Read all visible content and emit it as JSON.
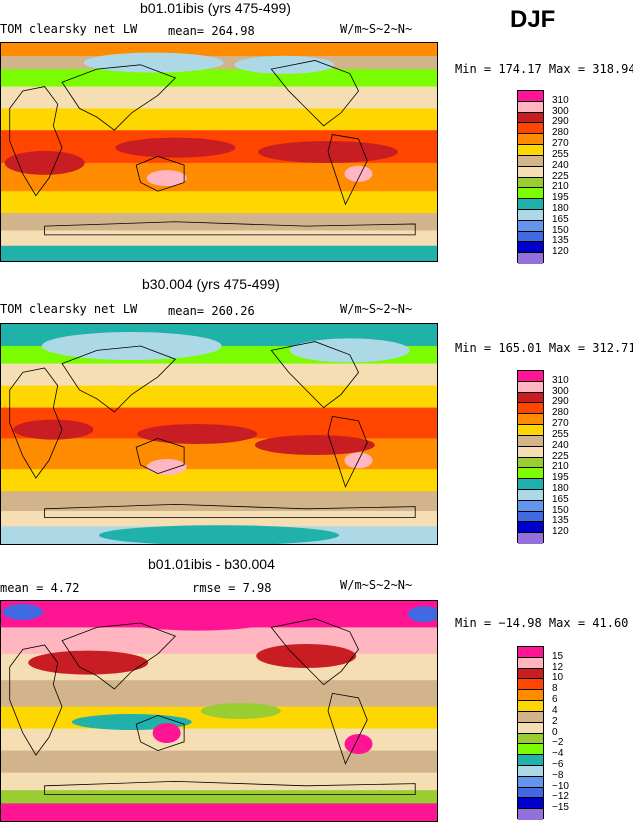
{
  "season": "DJF",
  "units": "W/m~S~2~N~",
  "panels": [
    {
      "title": "b01.01ibis (yrs 475-499)",
      "left_label": "TOM clearsky net LW",
      "stat_text": "mean= 264.98",
      "minmax": "Min = 174.17 Max = 318.94"
    },
    {
      "title": "b30.004 (yrs 475-499)",
      "left_label": "TOM clearsky net LW",
      "stat_text": "mean= 260.26",
      "minmax": "Min = 165.01 Max = 312.71"
    },
    {
      "title": "b01.01ibis - b30.004",
      "left_label": "mean =   4.72",
      "stat_text": "rmse =   7.98",
      "minmax": "Min = −14.98 Max =  41.60"
    }
  ],
  "colors": {
    "c1": "#ff1493",
    "c2": "#ffb6c1",
    "c3": "#c81e23",
    "c4": "#ff4500",
    "c5": "#ff8c00",
    "c6": "#ffd700",
    "c7": "#d2b48c",
    "c8": "#f5deb3",
    "c9": "#9acd32",
    "c10": "#7cfc00",
    "c11": "#20b2aa",
    "c12": "#add8e6",
    "c13": "#6495ed",
    "c14": "#4169e1",
    "c15": "#0000cd",
    "c16": "#9370db"
  },
  "chart_data": [
    {
      "type": "heatmap",
      "title": "b01.01ibis (yrs 475-499)",
      "variable": "TOM clearsky net LW",
      "units": "W/m~S~2~N~",
      "mean": 264.98,
      "min": 174.17,
      "max": 318.94,
      "levels": [
        "310",
        "300",
        "290",
        "280",
        "270",
        "255",
        "240",
        "225",
        "210",
        "195",
        "180",
        "165",
        "150",
        "135",
        "120"
      ],
      "level_values": [
        310,
        300,
        290,
        280,
        270,
        255,
        240,
        225,
        210,
        195,
        180,
        165,
        150,
        135,
        120
      ]
    },
    {
      "type": "heatmap",
      "title": "b30.004 (yrs 475-499)",
      "variable": "TOM clearsky net LW",
      "units": "W/m~S~2~N~",
      "mean": 260.26,
      "min": 165.01,
      "max": 312.71,
      "levels": [
        "310",
        "300",
        "290",
        "280",
        "270",
        "255",
        "240",
        "225",
        "210",
        "195",
        "180",
        "165",
        "150",
        "135",
        "120"
      ],
      "level_values": [
        310,
        300,
        290,
        280,
        270,
        255,
        240,
        225,
        210,
        195,
        180,
        165,
        150,
        135,
        120
      ]
    },
    {
      "type": "heatmap",
      "title": "b01.01ibis - b30.004",
      "units": "W/m~S~2~N~",
      "mean": 4.72,
      "rmse": 7.98,
      "min": -14.98,
      "max": 41.6,
      "levels": [
        "15",
        "12",
        "10",
        "8",
        "6",
        "4",
        "2",
        "0",
        "−2",
        "−4",
        "−6",
        "−8",
        "−10",
        "−12",
        "−15"
      ],
      "level_values": [
        15,
        12,
        10,
        8,
        6,
        4,
        2,
        0,
        -2,
        -4,
        -6,
        -8,
        -10,
        -12,
        -15
      ]
    }
  ]
}
